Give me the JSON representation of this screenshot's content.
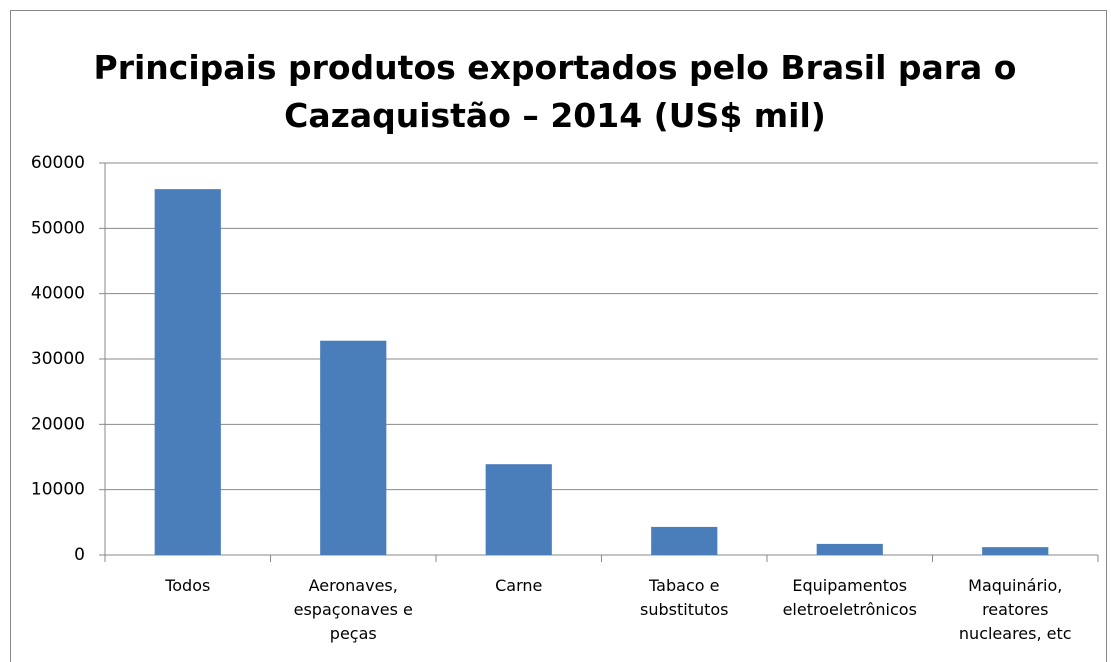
{
  "chart_data": {
    "type": "bar",
    "title": "Principais produtos exportados pelo Brasil para o Cazaquistão – 2014 (US$ mil)",
    "categories": [
      "Todos",
      "Aeronaves, espaçonaves e peças",
      "Carne",
      "Tabaco e substitutos",
      "Equipamentos eletroeletrônicos",
      "Maquinário, reatores nucleares, etc"
    ],
    "values": [
      56000,
      32800,
      13900,
      4300,
      1700,
      1200
    ],
    "color": "#4a7ebb",
    "ylim": [
      0,
      60000
    ],
    "yticks": [
      0,
      10000,
      20000,
      30000,
      40000,
      50000,
      60000
    ],
    "grid": true
  }
}
